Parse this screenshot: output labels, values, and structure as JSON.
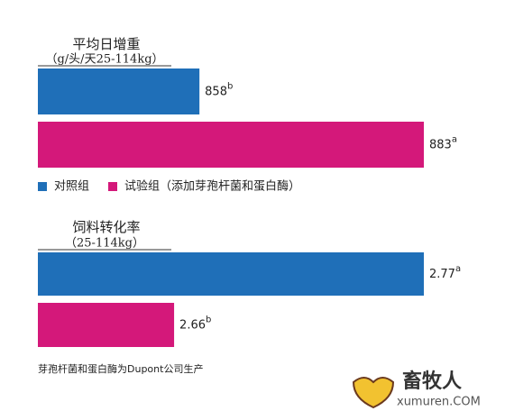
{
  "chart_data": [
    {
      "type": "bar",
      "orientation": "horizontal",
      "title": "平均日增重",
      "subtitle": "（g/头/天25-114kg）",
      "xlim": [
        840,
        883
      ],
      "series": [
        {
          "name": "对照组",
          "color": "#1f6fb8",
          "values": [
            858
          ],
          "significance": [
            "b"
          ]
        },
        {
          "name": "试验组（添加芽孢杆菌和蛋白酶）",
          "color": "#d4187a",
          "values": [
            883
          ],
          "significance": [
            "a"
          ]
        }
      ]
    },
    {
      "type": "bar",
      "orientation": "horizontal",
      "title": "饲料转化率",
      "subtitle": "（25-114kg）",
      "xlim": [
        2.6,
        2.77
      ],
      "series": [
        {
          "color": "#1f6fb8",
          "values": [
            2.77
          ],
          "significance": [
            "a"
          ]
        },
        {
          "color": "#d4187a",
          "values": [
            2.66
          ],
          "significance": [
            "b"
          ]
        }
      ]
    }
  ],
  "footnote": "芽孢杆菌和蛋白酶为Dupont公司生产",
  "watermark": {
    "name": "畜牧人",
    "site": "xumuren.COM"
  }
}
